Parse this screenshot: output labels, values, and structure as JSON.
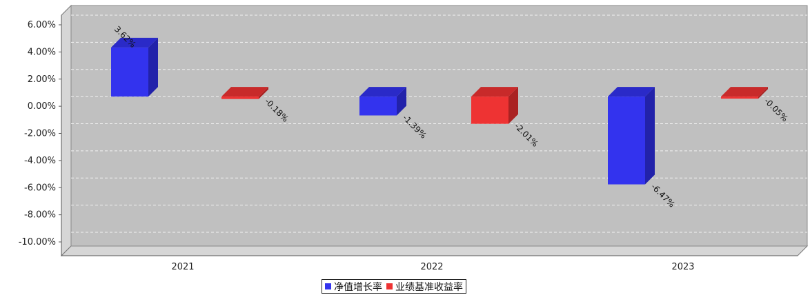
{
  "chart_data": {
    "type": "bar",
    "categories": [
      "2021",
      "2022",
      "2023"
    ],
    "series": [
      {
        "name": "净值增长率",
        "values": [
          3.62,
          -1.39,
          -6.47
        ],
        "labels": [
          "3.62%",
          "-1.39%",
          "-6.47%"
        ],
        "color": "#3333ee"
      },
      {
        "name": "业绩基准收益率",
        "values": [
          -0.18,
          -2.01,
          -0.05
        ],
        "labels": [
          "-0.18%",
          "-2.01%",
          "-0.05%"
        ],
        "color": "#ee3333"
      }
    ],
    "ylim": [
      -10,
      6
    ],
    "yticks": [
      6,
      4,
      2,
      0,
      -2,
      -4,
      -6,
      -8,
      -10
    ],
    "ytick_labels": [
      "6.00%",
      "4.00%",
      "2.00%",
      "0.00%",
      "-2.00%",
      "-4.00%",
      "-6.00%",
      "-8.00%",
      "-10.00%"
    ],
    "grid": true,
    "legend_position": "bottom-center",
    "background_color": "#c0c0c0"
  }
}
